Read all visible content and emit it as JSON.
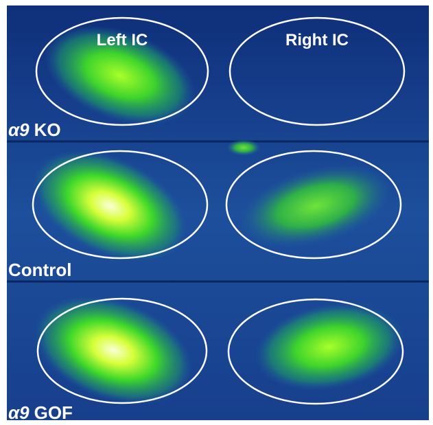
{
  "header": {
    "left": "Left IC",
    "right": "Right IC"
  },
  "rows": [
    {
      "label": [
        "α9",
        "KO"
      ]
    },
    {
      "label": [
        "Control"
      ]
    },
    {
      "label": [
        "α9",
        "GOF"
      ]
    }
  ]
}
